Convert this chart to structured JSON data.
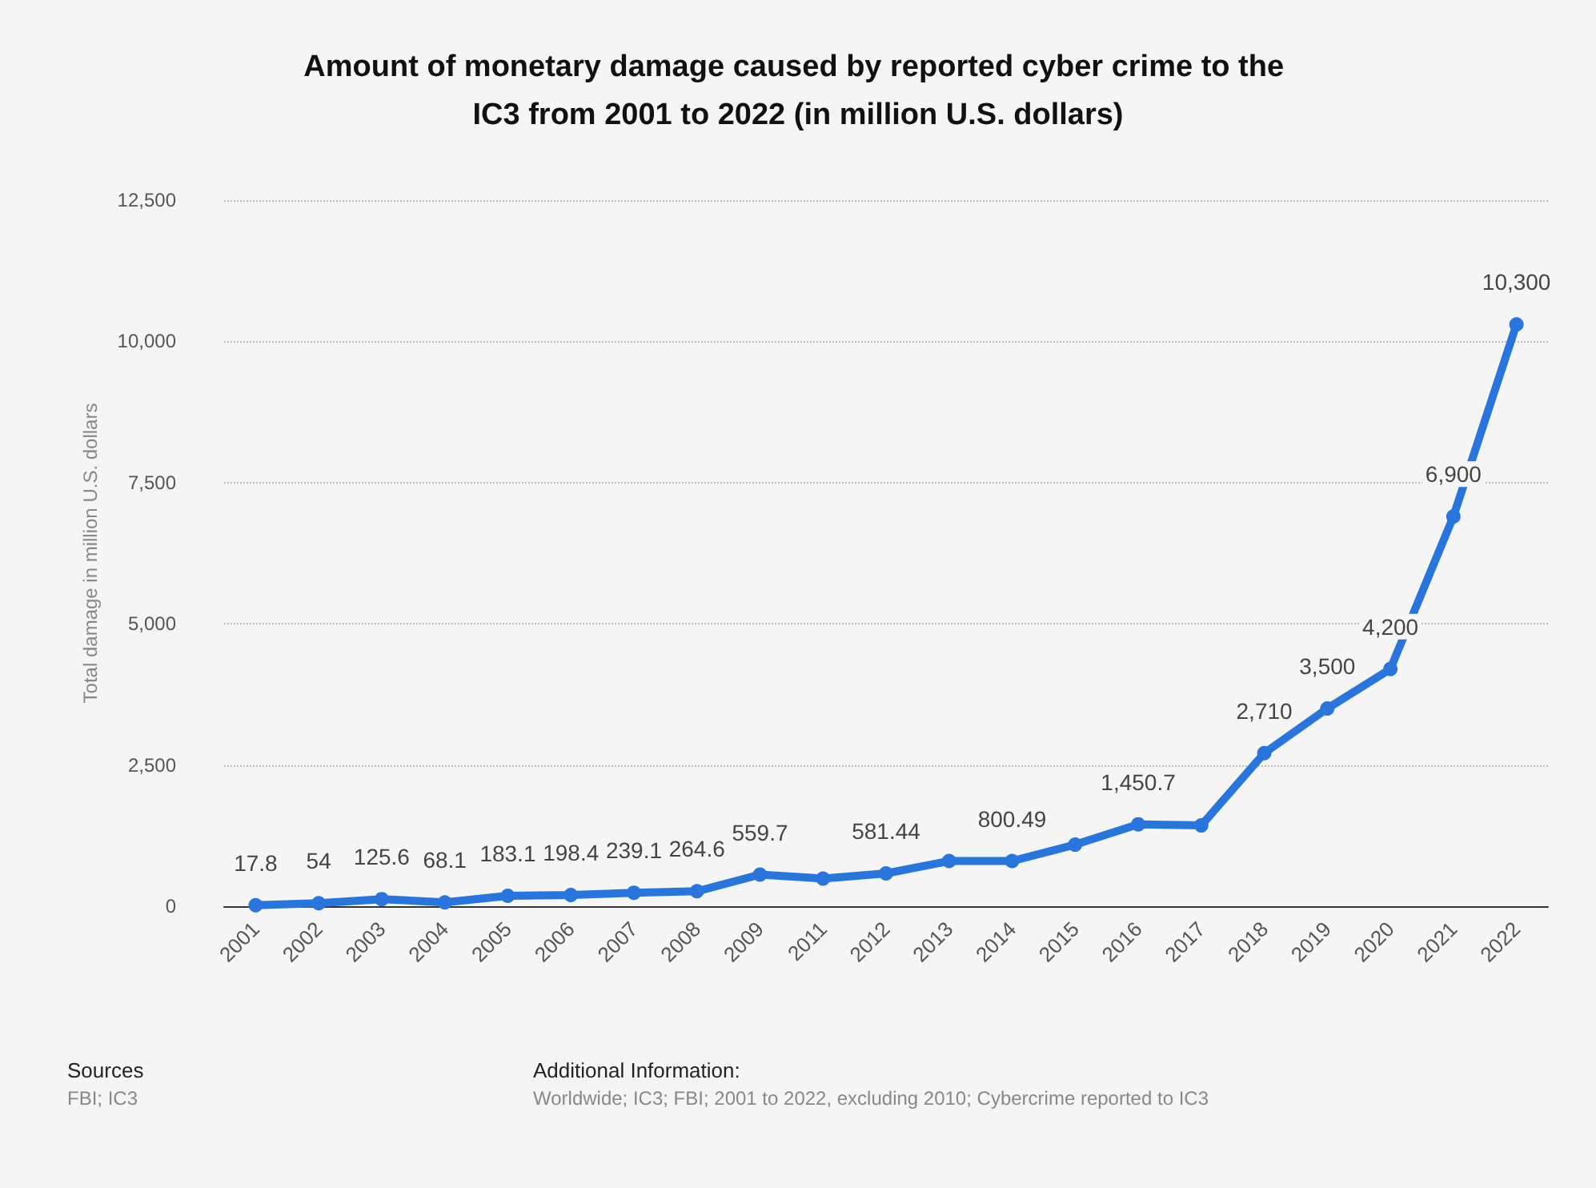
{
  "chart_data": {
    "type": "line",
    "title": "Amount of monetary damage caused by reported cyber crime to the IC3 from 2001 to 2022 (in million U.S. dollars)",
    "ylabel": "Total damage in million U.S. dollars",
    "categories": [
      "2001",
      "2002",
      "2003",
      "2004",
      "2005",
      "2006",
      "2007",
      "2008",
      "2009",
      "2011",
      "2012",
      "2013",
      "2014",
      "2015",
      "2016",
      "2017",
      "2018",
      "2019",
      "2020",
      "2021",
      "2022"
    ],
    "series": [
      {
        "color": "#2876dd",
        "values": [
          17.8,
          54,
          125.6,
          68.1,
          183.1,
          198.4,
          239.1,
          264.6,
          559.7,
          490,
          581.44,
          800,
          800.49,
          1090,
          1450.7,
          1430,
          2710,
          3500,
          4200,
          6900,
          10300
        ],
        "value_labels": [
          "17.8",
          "54",
          "125.6",
          "68.1",
          "183.1",
          "198.4",
          "239.1",
          "264.6",
          "559.7",
          null,
          "581.44",
          null,
          "800.49",
          null,
          "1,450.7",
          null,
          "2,710",
          "3,500",
          "4,200",
          "6,900",
          "10,300"
        ]
      }
    ],
    "ylim": [
      0,
      12500
    ],
    "yticks": [
      0,
      {
        "value": 2500,
        "label": "2,500"
      },
      {
        "value": 5000,
        "label": "5,000"
      },
      {
        "value": 7500,
        "label": "7,500"
      },
      {
        "value": 10000,
        "label": "10,000"
      },
      {
        "value": 12500,
        "label": "12,500"
      }
    ],
    "grid": "y",
    "marker": "circle",
    "line_style": "solid",
    "annotations": [
      "Sources",
      "FBI; IC3",
      "Additional Information:",
      "Worldwide; IC3; FBI; 2001 to 2022, excluding 2010; Cybercrime reported to IC3"
    ]
  }
}
